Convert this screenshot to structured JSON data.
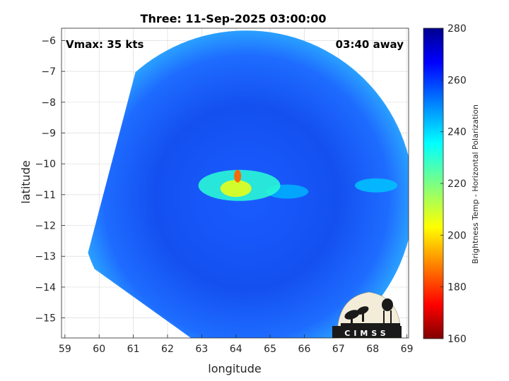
{
  "chart_data": {
    "type": "heatmap",
    "title": "Three: 11-Sep-2025 03:00:00",
    "xlabel": "longitude",
    "ylabel": "latitude",
    "xlim": [
      58.9,
      69.05
    ],
    "ylim": [
      -15.65,
      -5.6
    ],
    "x_ticks": [
      59,
      60,
      61,
      62,
      63,
      64,
      65,
      66,
      67,
      68,
      69
    ],
    "y_ticks": [
      -6,
      -7,
      -8,
      -9,
      -10,
      -11,
      -12,
      -13,
      -14,
      -15
    ],
    "grid": true,
    "annotations": {
      "vmax": "Vmax: 35 kts",
      "time_away": "03:40 away"
    },
    "colorbar": {
      "label": "Brightness Temp - Horizontal Polarization",
      "range": [
        160,
        280
      ],
      "ticks": [
        280,
        260,
        240,
        220,
        200,
        180,
        160
      ],
      "colormap": "jet"
    },
    "swath": {
      "center": [
        64.3,
        -11.1
      ],
      "radius_deg": 4.9,
      "clip_polygon": [
        [
          61.4,
          -5.6
        ],
        [
          59.6,
          -13.2
        ],
        [
          63.0,
          -15.9
        ],
        [
          69.2,
          -15.9
        ],
        [
          69.2,
          -5.6
        ]
      ]
    },
    "features": [
      {
        "type": "core_min",
        "lon": 64.05,
        "lat": -10.4,
        "value": 185
      },
      {
        "type": "core",
        "lon": 64.0,
        "lat": -10.8,
        "value": 205
      },
      {
        "type": "convective_band",
        "lon": 64.1,
        "lat": -10.7,
        "value": 230
      },
      {
        "type": "rainband",
        "lon": 65.5,
        "lat": -10.9,
        "value": 245
      },
      {
        "type": "rainband",
        "lon": 68.1,
        "lat": -10.7,
        "value": 243
      }
    ],
    "background_value": 262
  },
  "logo": {
    "text": "CIMSS"
  }
}
